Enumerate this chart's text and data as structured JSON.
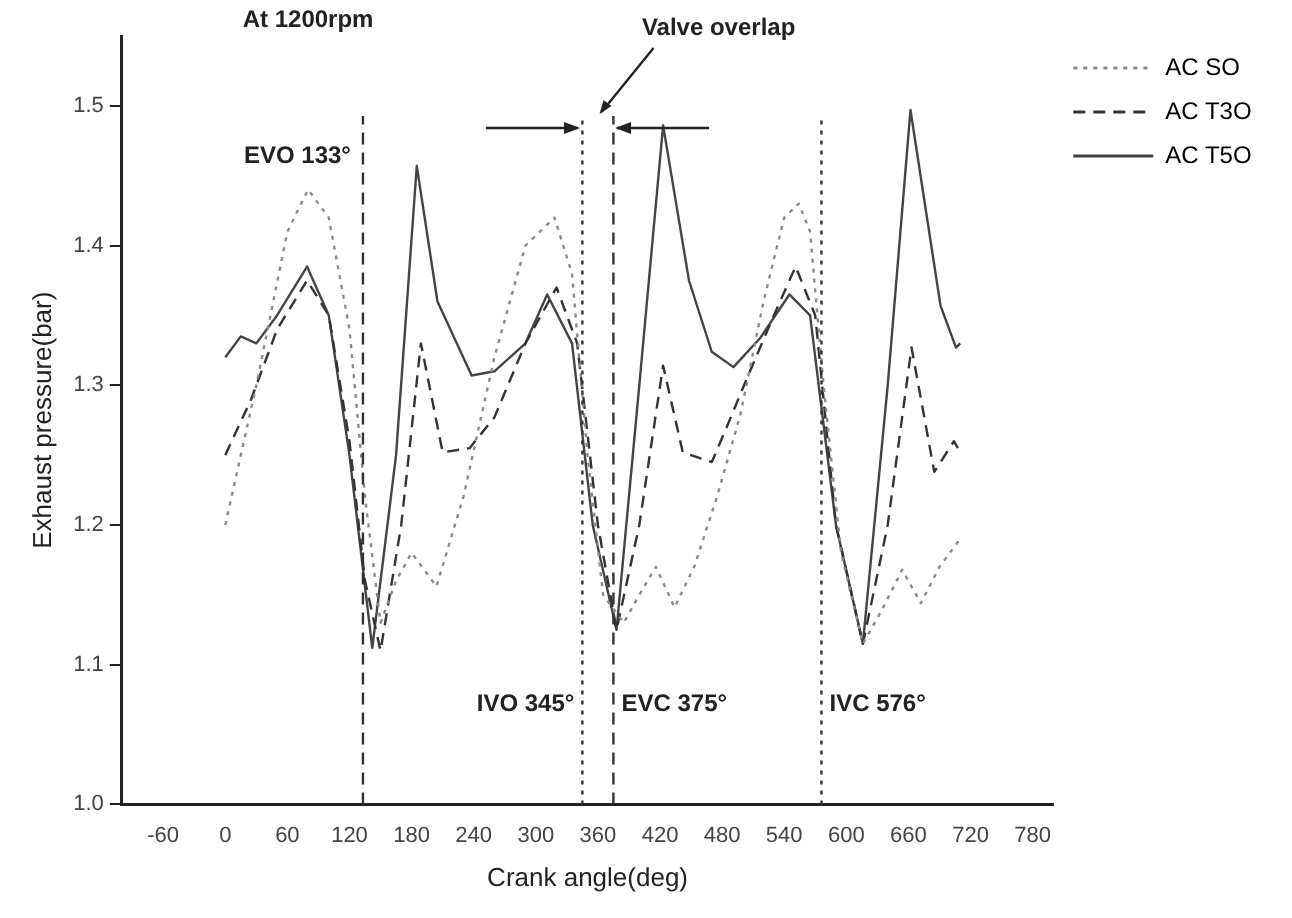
{
  "chart_data": {
    "type": "line",
    "title": "At 1200rpm",
    "xlabel": "Crank angle(deg)",
    "ylabel": "Exhaust pressure(bar)",
    "xlim": [
      -100,
      800
    ],
    "xticks": [
      -60,
      0,
      60,
      120,
      180,
      240,
      300,
      360,
      420,
      480,
      540,
      600,
      660,
      720,
      780
    ],
    "ylim": [
      1.0,
      1.55
    ],
    "yticks": [
      {
        "value": 1.0,
        "label": "1.0"
      },
      {
        "value": 1.1,
        "label": "1.1"
      },
      {
        "value": 1.2,
        "label": "1.2"
      },
      {
        "value": 1.3,
        "label": "1.3"
      },
      {
        "value": 1.4,
        "label": "1.4"
      },
      {
        "value": 1.5,
        "label": "1.5"
      }
    ],
    "grid": false,
    "legend": "top right",
    "marker": "none",
    "series": [
      {
        "name": "AC SO",
        "color": "#8a8a8a",
        "line_style": "dotted",
        "x": [
          0,
          30,
          60,
          80,
          100,
          120,
          135,
          150,
          165,
          180,
          204,
          230,
          260,
          290,
          318,
          335,
          350,
          365,
          385,
          400,
          416,
          434,
          453,
          475,
          498,
          520,
          540,
          554,
          565,
          578,
          595,
          616,
          635,
          654,
          672,
          690,
          710
        ],
        "values": [
          1.2,
          1.3,
          1.41,
          1.44,
          1.42,
          1.34,
          1.22,
          1.13,
          1.16,
          1.18,
          1.156,
          1.22,
          1.32,
          1.4,
          1.42,
          1.38,
          1.25,
          1.15,
          1.13,
          1.15,
          1.17,
          1.141,
          1.17,
          1.22,
          1.28,
          1.36,
          1.42,
          1.43,
          1.41,
          1.3,
          1.18,
          1.115,
          1.14,
          1.168,
          1.144,
          1.17,
          1.19
        ]
      },
      {
        "name": "AC T3O",
        "color": "#333333",
        "line_style": "dashed",
        "x": [
          0,
          25,
          50,
          79,
          100,
          120,
          135,
          150,
          170,
          189,
          210,
          236,
          260,
          290,
          320,
          340,
          360,
          378,
          400,
          423,
          442,
          470,
          485,
          504,
          530,
          551,
          570,
          590,
          616,
          640,
          663,
          685,
          704,
          710
        ],
        "values": [
          1.25,
          1.29,
          1.34,
          1.375,
          1.35,
          1.26,
          1.16,
          1.11,
          1.2,
          1.33,
          1.252,
          1.255,
          1.277,
          1.33,
          1.37,
          1.33,
          1.2,
          1.125,
          1.2,
          1.314,
          1.252,
          1.245,
          1.271,
          1.305,
          1.35,
          1.385,
          1.35,
          1.2,
          1.115,
          1.2,
          1.327,
          1.238,
          1.26,
          1.252
        ]
      },
      {
        "name": "AC T5O",
        "color": "#444444",
        "line_style": "solid",
        "x": [
          0,
          15,
          30,
          50,
          79,
          100,
          120,
          142,
          165,
          185,
          205,
          238,
          260,
          290,
          311,
          335,
          355,
          378,
          400,
          423,
          448,
          470,
          491,
          517,
          545,
          565,
          590,
          616,
          640,
          662,
          691,
          706,
          710
        ],
        "values": [
          1.32,
          1.335,
          1.33,
          1.35,
          1.385,
          1.35,
          1.25,
          1.112,
          1.25,
          1.457,
          1.36,
          1.307,
          1.31,
          1.33,
          1.365,
          1.33,
          1.2,
          1.125,
          1.3,
          1.486,
          1.375,
          1.324,
          1.313,
          1.334,
          1.365,
          1.35,
          1.2,
          1.115,
          1.3,
          1.497,
          1.357,
          1.327,
          1.33
        ]
      }
    ],
    "ref_lines": [
      {
        "axis": "x",
        "value": 133,
        "label": "EVO 133°",
        "line_style": "dashed"
      },
      {
        "axis": "x",
        "value": 345,
        "label": "IVO 345°",
        "line_style": "dotted"
      },
      {
        "axis": "x",
        "value": 375,
        "label": "EVC 375°",
        "line_style": "dashed"
      },
      {
        "axis": "x",
        "value": 576,
        "label": "IVC 576°",
        "line_style": "dotted"
      }
    ],
    "annotations": [
      "Valve overlap"
    ]
  }
}
